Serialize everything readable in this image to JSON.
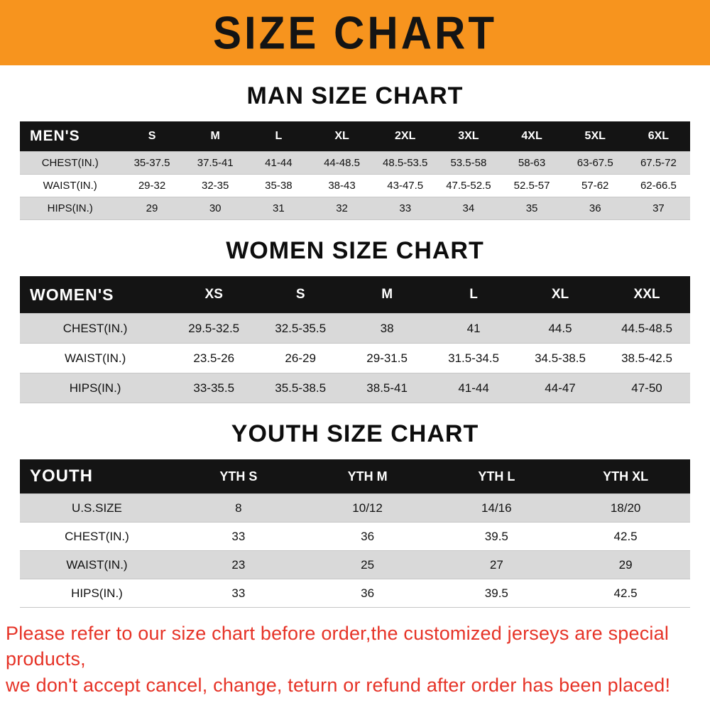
{
  "banner": {
    "title": "SIZE CHART"
  },
  "colors": {
    "banner_bg": "#f7941e",
    "table_header_bg": "#141414",
    "table_shade_row": "#d9d9d9",
    "footer_text": "#e63327"
  },
  "sections": [
    {
      "heading": "MAN SIZE CHART",
      "table": {
        "header_label": "MEN'S",
        "columns": [
          "S",
          "M",
          "L",
          "XL",
          "2XL",
          "3XL",
          "4XL",
          "5XL",
          "6XL"
        ],
        "rows": [
          {
            "label": "CHEST(IN.)",
            "values": [
              "35-37.5",
              "37.5-41",
              "41-44",
              "44-48.5",
              "48.5-53.5",
              "53.5-58",
              "58-63",
              "63-67.5",
              "67.5-72"
            ]
          },
          {
            "label": "WAIST(IN.)",
            "values": [
              "29-32",
              "32-35",
              "35-38",
              "38-43",
              "43-47.5",
              "47.5-52.5",
              "52.5-57",
              "57-62",
              "62-66.5"
            ]
          },
          {
            "label": "HIPS(IN.)",
            "values": [
              "29",
              "30",
              "31",
              "32",
              "33",
              "34",
              "35",
              "36",
              "37"
            ]
          }
        ]
      }
    },
    {
      "heading": "WOMEN SIZE CHART",
      "table": {
        "header_label": "WOMEN'S",
        "columns": [
          "XS",
          "S",
          "M",
          "L",
          "XL",
          "XXL"
        ],
        "rows": [
          {
            "label": "CHEST(IN.)",
            "values": [
              "29.5-32.5",
              "32.5-35.5",
              "38",
              "41",
              "44.5",
              "44.5-48.5"
            ]
          },
          {
            "label": "WAIST(IN.)",
            "values": [
              "23.5-26",
              "26-29",
              "29-31.5",
              "31.5-34.5",
              "34.5-38.5",
              "38.5-42.5"
            ]
          },
          {
            "label": "HIPS(IN.)",
            "values": [
              "33-35.5",
              "35.5-38.5",
              "38.5-41",
              "41-44",
              "44-47",
              "47-50"
            ]
          }
        ]
      }
    },
    {
      "heading": "YOUTH SIZE CHART",
      "table": {
        "header_label": "YOUTH",
        "columns": [
          "YTH S",
          "YTH M",
          "YTH L",
          "YTH XL"
        ],
        "rows": [
          {
            "label": "U.S.SIZE",
            "values": [
              "8",
              "10/12",
              "14/16",
              "18/20"
            ]
          },
          {
            "label": "CHEST(IN.)",
            "values": [
              "33",
              "36",
              "39.5",
              "42.5"
            ]
          },
          {
            "label": "WAIST(IN.)",
            "values": [
              "23",
              "25",
              "27",
              "29"
            ]
          },
          {
            "label": "HIPS(IN.)",
            "values": [
              "33",
              "36",
              "39.5",
              "42.5"
            ]
          }
        ]
      }
    }
  ],
  "footer": {
    "line1": "Please refer to our size chart before order,the customized jerseys are special products,",
    "line2": "we don't accept cancel, change, teturn or refund after order has been placed!"
  }
}
